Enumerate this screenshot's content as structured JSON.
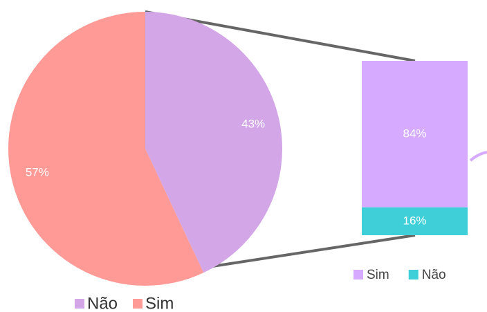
{
  "chart_data": [
    {
      "type": "pie",
      "categories": [
        "Não",
        "Sim"
      ],
      "values": [
        43,
        57
      ],
      "value_labels": [
        "43%",
        "57%"
      ],
      "colors": [
        "#d3a6e8",
        "#ff9a96"
      ]
    },
    {
      "type": "bar",
      "stacked": true,
      "series": [
        {
          "name": "Sim",
          "color": "#d6aaff",
          "values": [
            84
          ],
          "value_labels": [
            "84%"
          ]
        },
        {
          "name": "Não",
          "color": "#3ecfd8",
          "values": [
            16
          ],
          "value_labels": [
            "16%"
          ]
        }
      ]
    }
  ]
}
